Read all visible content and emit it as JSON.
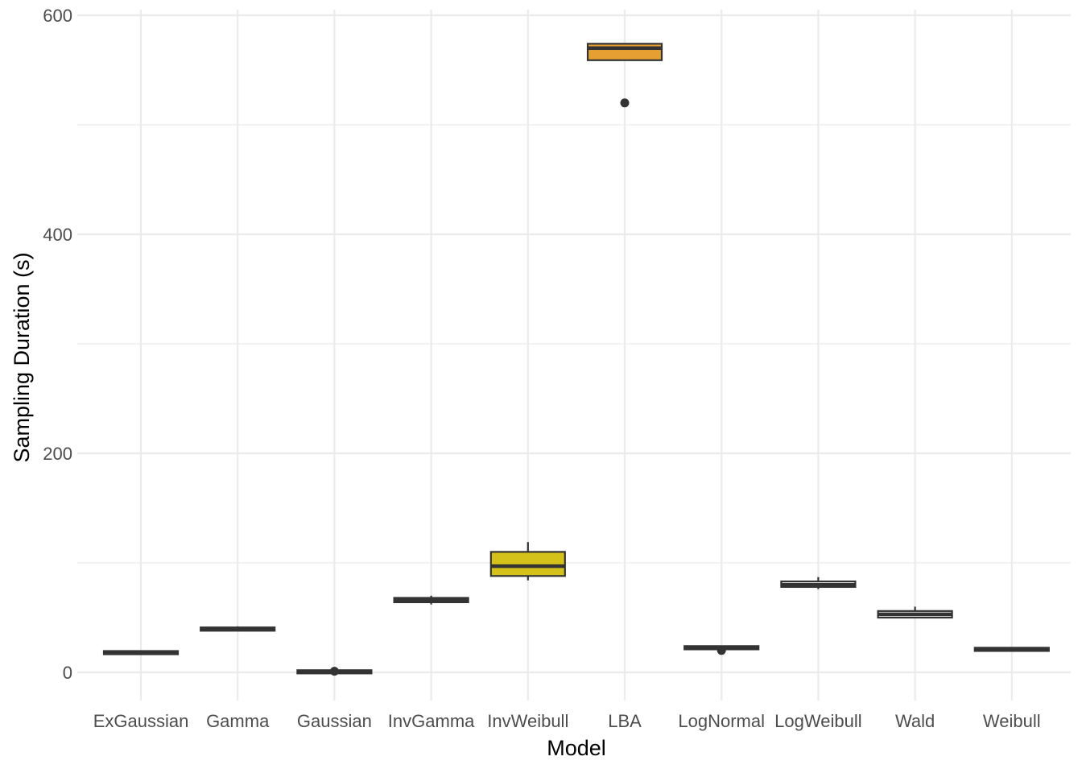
{
  "chart_data": {
    "type": "boxplot",
    "title": "",
    "xlabel": "Model",
    "ylabel": "Sampling Duration (s)",
    "ylim": [
      -25,
      603
    ],
    "yticks": [
      0,
      200,
      400,
      600
    ],
    "y_minor_gridlines": [
      100,
      300,
      500
    ],
    "grid": true,
    "legend": "none",
    "categories": [
      "ExGaussian",
      "Gamma",
      "Gaussian",
      "InvGamma",
      "InvWeibull",
      "LBA",
      "LogNormal",
      "LogWeibull",
      "Wald",
      "Weibull"
    ],
    "boxes": [
      {
        "category": "ExGaussian",
        "min": 17,
        "q1": 17,
        "median": 18,
        "q3": 19,
        "max": 19,
        "outliers": [],
        "fill": "#ffffff"
      },
      {
        "category": "Gamma",
        "min": 38,
        "q1": 38,
        "median": 40,
        "q3": 41,
        "max": 42,
        "outliers": [],
        "fill": "#ffffff"
      },
      {
        "category": "Gaussian",
        "min": 0,
        "q1": 0,
        "median": 0.5,
        "q3": 1,
        "max": 1,
        "outliers": [
          1
        ],
        "fill": "#ffffff"
      },
      {
        "category": "InvGamma",
        "min": 62,
        "q1": 64,
        "median": 66,
        "q3": 68,
        "max": 70,
        "outliers": [],
        "fill": "#ffffff"
      },
      {
        "category": "InvWeibull",
        "min": 84,
        "q1": 88,
        "median": 97,
        "q3": 110,
        "max": 119,
        "outliers": [],
        "fill": "#d4c11a"
      },
      {
        "category": "LBA",
        "min": 559,
        "q1": 559,
        "median": 570,
        "q3": 574,
        "max": 574,
        "outliers": [
          520
        ],
        "fill": "#e69f32"
      },
      {
        "category": "LogNormal",
        "min": 21,
        "q1": 21,
        "median": 23,
        "q3": 24,
        "max": 24,
        "outliers": [
          20
        ],
        "fill": "#ffffff"
      },
      {
        "category": "LogWeibull",
        "min": 76,
        "q1": 78,
        "median": 80,
        "q3": 83,
        "max": 87,
        "outliers": [],
        "fill": "#ffffff"
      },
      {
        "category": "Wald",
        "min": 50,
        "q1": 50,
        "median": 53,
        "q3": 56,
        "max": 60,
        "outliers": [],
        "fill": "#ffffff"
      },
      {
        "category": "Weibull",
        "min": 20,
        "q1": 20,
        "median": 21,
        "q3": 22,
        "max": 22,
        "outliers": [],
        "fill": "#ffffff"
      }
    ],
    "colors": {
      "box_stroke": "#333333",
      "outlier": "#333333",
      "grid_major": "#ebebeb",
      "grid_minor": "#ebebeb",
      "tick_text": "#4d4d4d",
      "title_text": "#000000"
    }
  }
}
